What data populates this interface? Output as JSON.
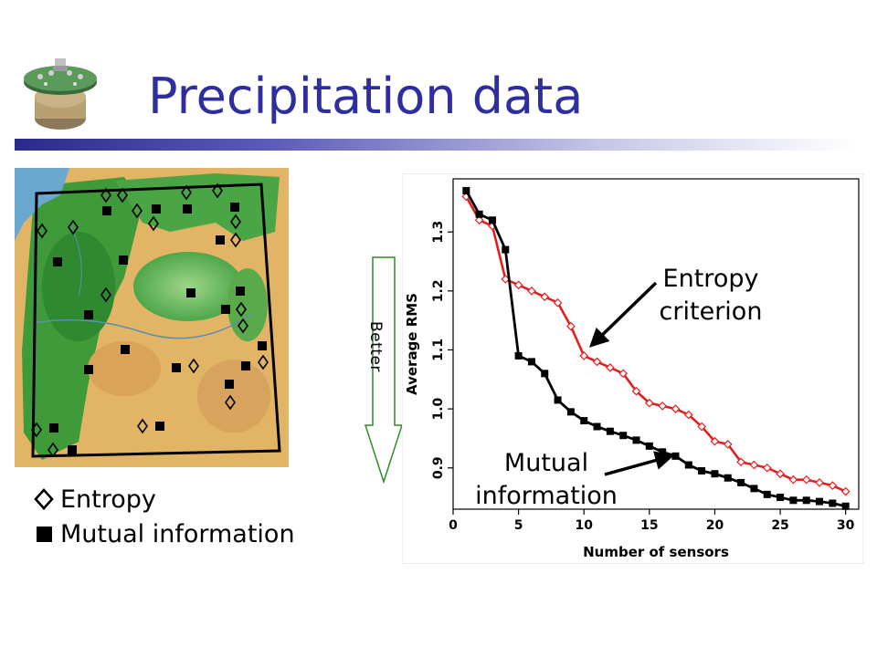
{
  "slide": {
    "title": "Precipitation data"
  },
  "legend": {
    "entropy_label": "Entropy",
    "mutual_label": "Mutual information"
  },
  "better_label": "Better",
  "annotations": {
    "entropy_line1": "Entropy",
    "entropy_line2": "criterion",
    "mutual_line1": "Mutual",
    "mutual_line2": "information"
  },
  "colors": {
    "title": "#2e2e9e",
    "entropy_series": "#e02020",
    "mutual_series": "#000000",
    "better_arrow": "#2e8b2e"
  },
  "chart_data": {
    "type": "line",
    "xlabel": "Number of sensors",
    "ylabel": "Average RMS",
    "xlim": [
      0,
      31
    ],
    "ylim": [
      0.83,
      1.39
    ],
    "xticks": [
      0,
      5,
      10,
      15,
      20,
      25,
      30
    ],
    "yticks": [
      0.9,
      1.0,
      1.1,
      1.2,
      1.3
    ],
    "grid": false,
    "series": [
      {
        "name": "Entropy criterion",
        "marker": "diamond",
        "color": "#e02020",
        "x": [
          1,
          2,
          3,
          4,
          5,
          6,
          7,
          8,
          9,
          10,
          11,
          12,
          13,
          14,
          15,
          16,
          17,
          18,
          19,
          20,
          21,
          22,
          23,
          24,
          25,
          26,
          27,
          28,
          29,
          30
        ],
        "y": [
          1.36,
          1.32,
          1.31,
          1.22,
          1.21,
          1.2,
          1.19,
          1.18,
          1.14,
          1.09,
          1.08,
          1.07,
          1.06,
          1.03,
          1.01,
          1.005,
          1.0,
          0.99,
          0.97,
          0.945,
          0.94,
          0.91,
          0.905,
          0.9,
          0.89,
          0.88,
          0.88,
          0.875,
          0.87,
          0.86
        ]
      },
      {
        "name": "Mutual information",
        "marker": "square",
        "color": "#000000",
        "x": [
          1,
          2,
          3,
          4,
          5,
          6,
          7,
          8,
          9,
          10,
          11,
          12,
          13,
          14,
          15,
          16,
          17,
          18,
          19,
          20,
          21,
          22,
          23,
          24,
          25,
          26,
          27,
          28,
          29,
          30
        ],
        "y": [
          1.37,
          1.33,
          1.32,
          1.27,
          1.09,
          1.08,
          1.06,
          1.015,
          0.995,
          0.98,
          0.97,
          0.962,
          0.955,
          0.947,
          0.937,
          0.927,
          0.92,
          0.905,
          0.895,
          0.89,
          0.883,
          0.875,
          0.865,
          0.855,
          0.85,
          0.845,
          0.845,
          0.843,
          0.84,
          0.835
        ]
      }
    ]
  }
}
